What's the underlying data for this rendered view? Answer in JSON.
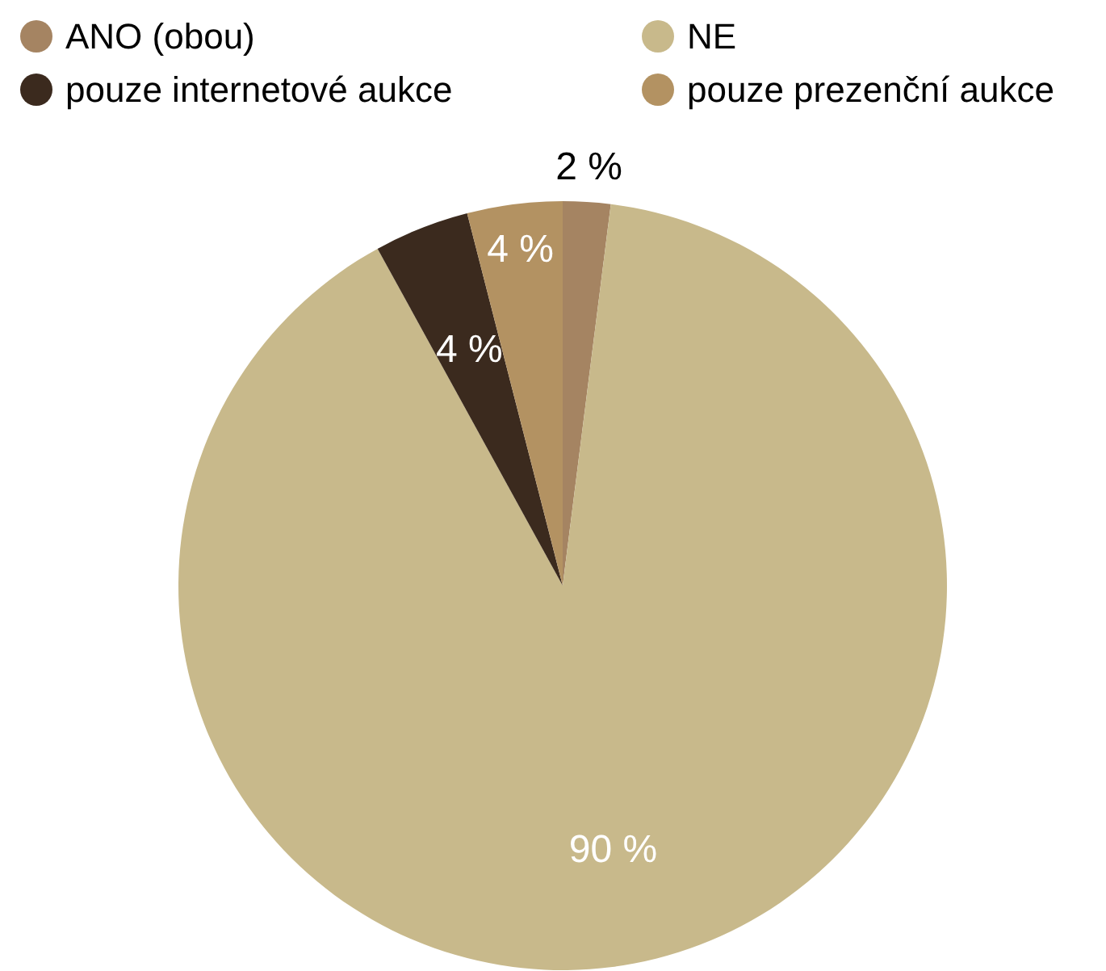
{
  "chart_data": {
    "type": "pie",
    "categories": [
      "ANO (obou)",
      "NE",
      "pouze internetové aukce",
      "pouze prezenční aukce"
    ],
    "values": [
      2,
      90,
      4,
      4
    ],
    "colors": [
      "#a58462",
      "#c8b98b",
      "#3b2a1e",
      "#b39262"
    ],
    "value_labels": [
      "2 %",
      "90 %",
      "4 %",
      "4 %"
    ],
    "legend": "top"
  }
}
